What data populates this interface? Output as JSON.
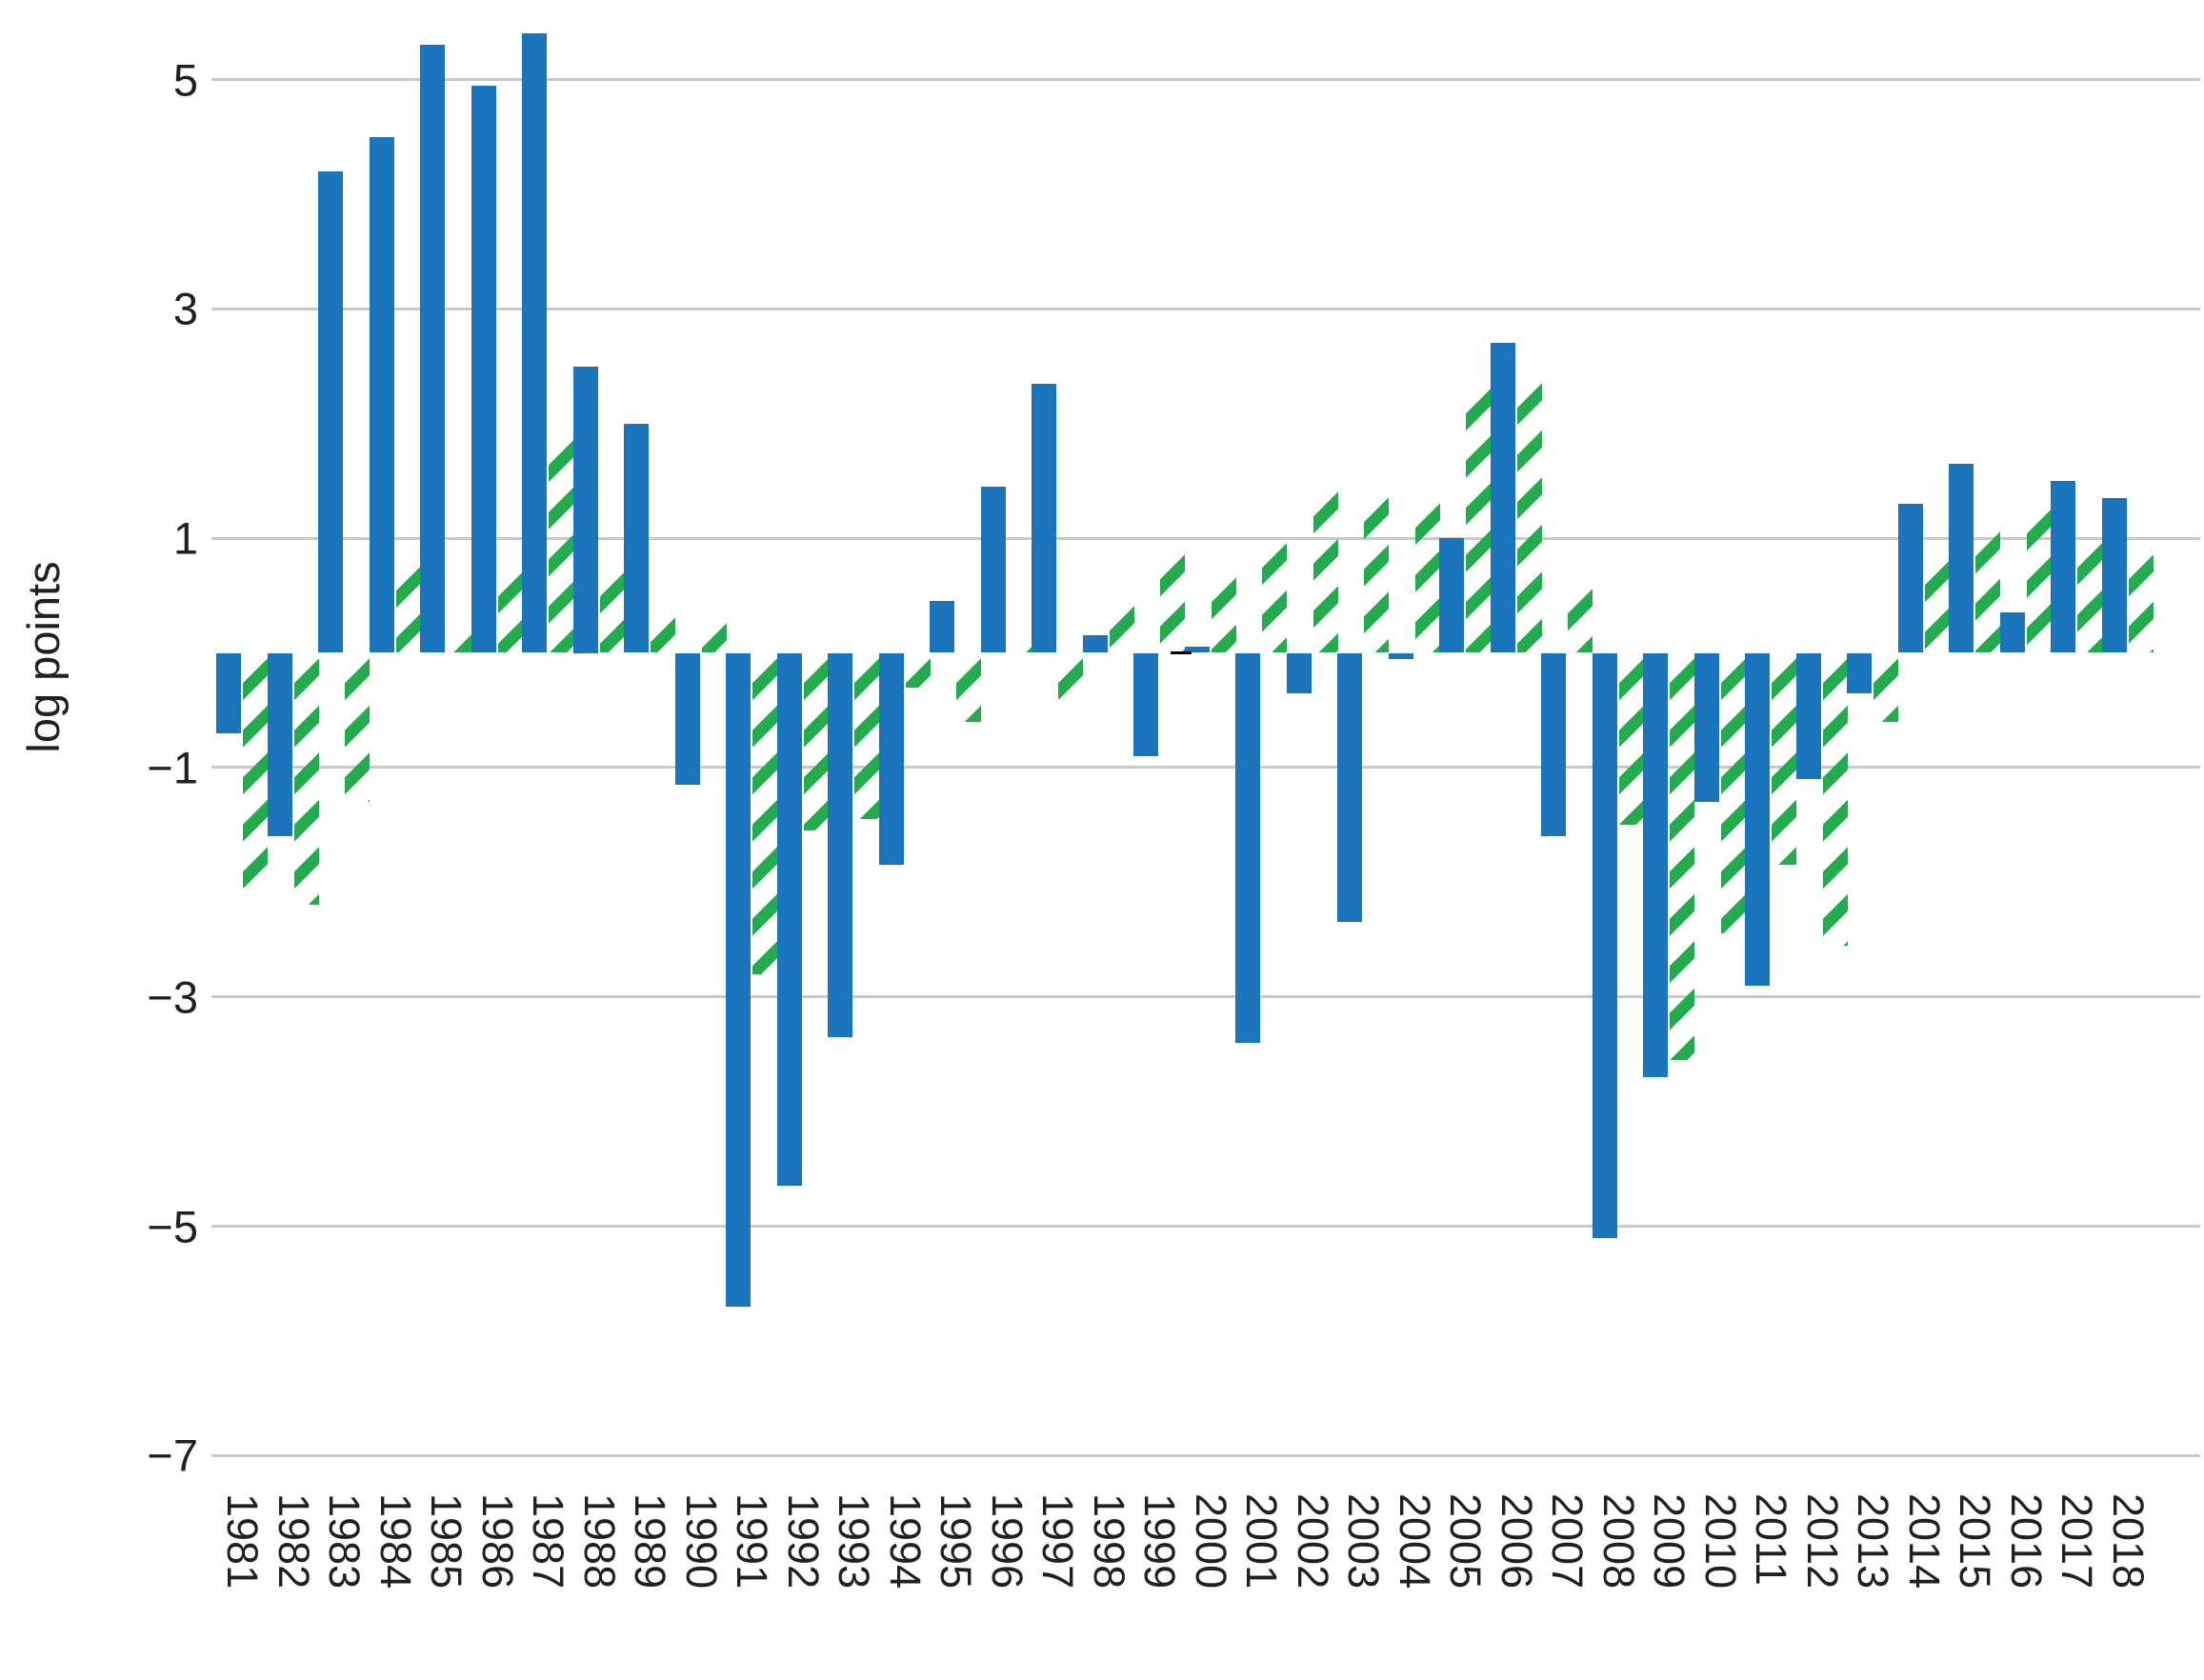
{
  "chart_data": {
    "type": "bar",
    "title": "",
    "xlabel": "",
    "ylabel": "log points",
    "ylim": [
      -7.6,
      5.6
    ],
    "grid": true,
    "legend_position": "none",
    "y_tick_values": [
      5,
      3,
      1,
      -1,
      -3,
      -5,
      -7
    ],
    "y_tick_labels": [
      "5",
      "3",
      "1",
      "−1",
      "−3",
      "−5",
      "−7"
    ],
    "categories": [
      "1981",
      "1982",
      "1983",
      "1984",
      "1985",
      "1986",
      "1987",
      "1988",
      "1989",
      "1990",
      "1991",
      "1992",
      "1993",
      "1994",
      "1995",
      "1996",
      "1997",
      "1998",
      "1999",
      "2000",
      "2001",
      "2002",
      "2003",
      "2004",
      "2005",
      "2006",
      "2007",
      "2008",
      "2009",
      "2010",
      "2011",
      "2012",
      "2013",
      "2014",
      "2015",
      "2016",
      "2017",
      "2018"
    ],
    "series": [
      {
        "name": "solid-blue-series",
        "color": "#1b75bc",
        "style": "solid",
        "values": [
          -0.7,
          -1.6,
          4.2,
          4.5,
          5.3,
          4.95,
          5.4,
          2.5,
          2.0,
          -1.15,
          -5.7,
          -4.65,
          -3.35,
          -1.85,
          0.45,
          1.45,
          2.35,
          0.15,
          -0.9,
          0.05,
          -3.4,
          -0.35,
          -2.35,
          -0.05,
          1.0,
          2.7,
          -1.6,
          -5.1,
          -3.7,
          -1.3,
          -2.9,
          -1.1,
          -0.35,
          1.3,
          1.65,
          0.35,
          1.5,
          1.35
        ]
      },
      {
        "name": "hatched-green-series",
        "color": "#22ac4e",
        "style": "diagonal-hatch",
        "values": [
          -2.05,
          -2.2,
          -1.3,
          0.8,
          0.2,
          0.75,
          1.9,
          0.75,
          0.35,
          0.3,
          -2.8,
          -1.55,
          -1.45,
          -0.3,
          -0.6,
          0.1,
          -0.4,
          0.45,
          0.9,
          0.7,
          1.0,
          1.45,
          1.4,
          1.35,
          2.35,
          2.4,
          0.6,
          -1.5,
          -3.55,
          -2.45,
          -1.85,
          -2.55,
          -0.6,
          0.85,
          1.1,
          1.3,
          1.0,
          0.9
        ]
      }
    ],
    "zero_marker_year": "2000"
  }
}
